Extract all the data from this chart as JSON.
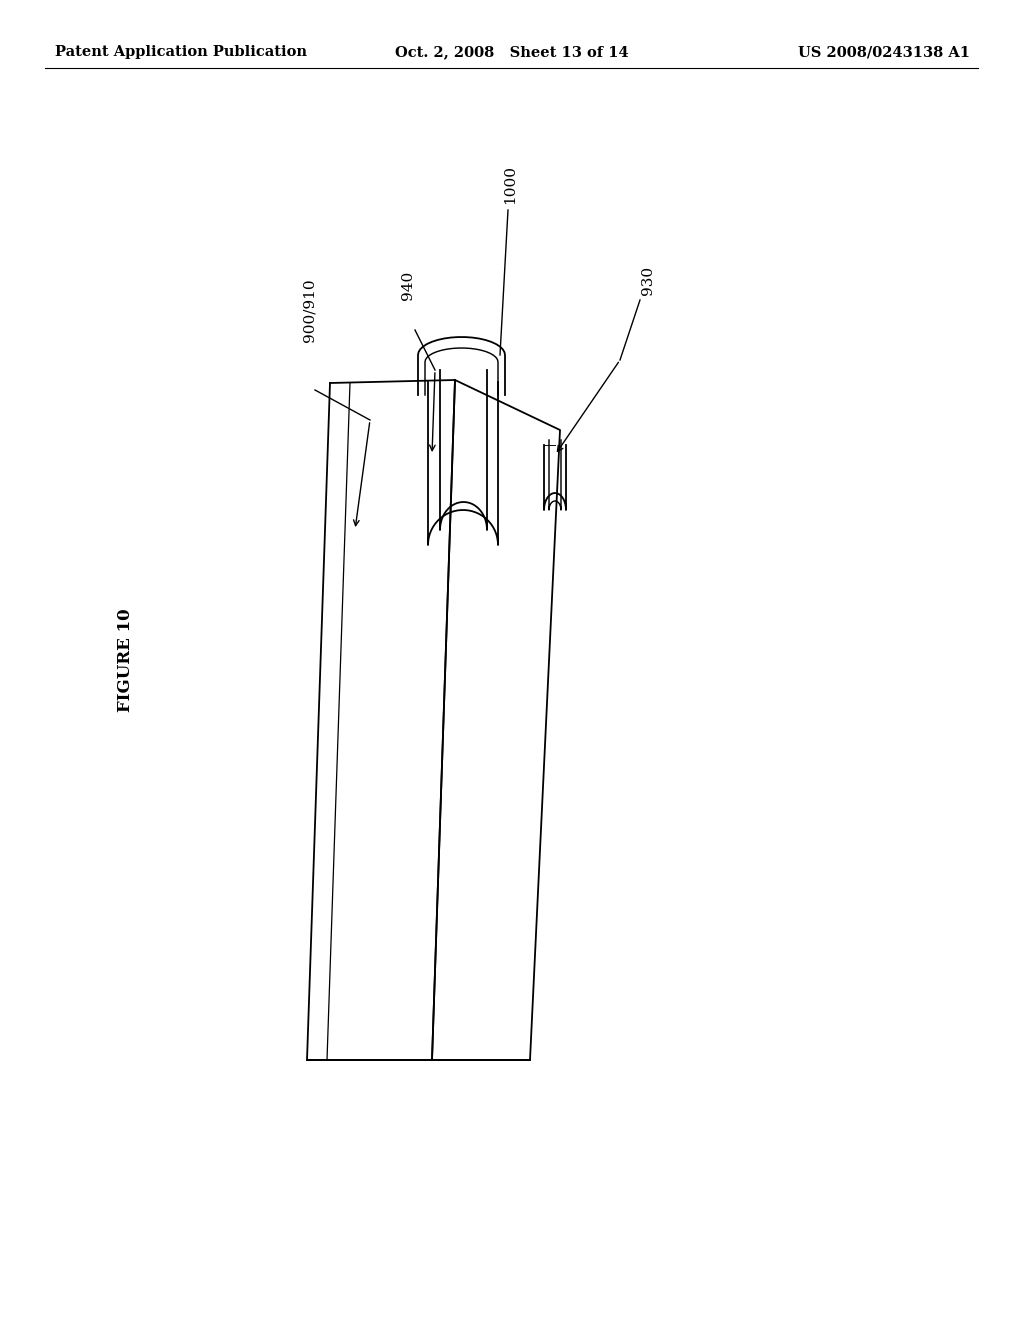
{
  "background_color": "#ffffff",
  "title_left": "Patent Application Publication",
  "title_center": "Oct. 2, 2008   Sheet 13 of 14",
  "title_right": "US 2008/0243138 A1",
  "figure_label": "FIGURE 10",
  "labels": [
    "900/910",
    "940",
    "1000",
    "930"
  ],
  "header_fontsize": 10.5,
  "figure_label_fontsize": 12,
  "line_width": 1.3,
  "color": "#000000"
}
